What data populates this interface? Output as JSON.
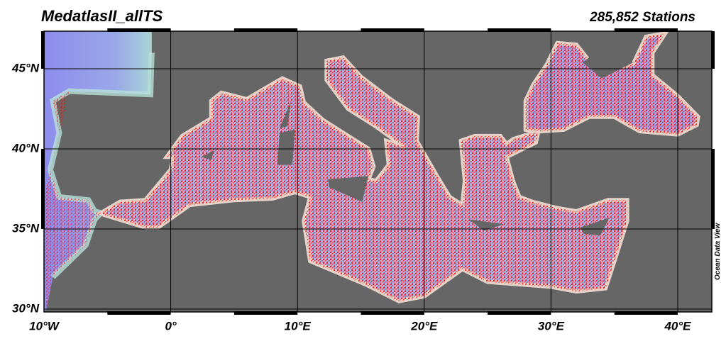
{
  "title": "MedatlasII_allTS",
  "station_count": "285,852 Stations",
  "lat_labels": [
    "45°N",
    "40°N",
    "35°N",
    "30°N"
  ],
  "lon_labels": [
    "10°W",
    "0°",
    "10°E",
    "20°E",
    "30°E",
    "40°E"
  ],
  "watermark": "Ocean Data View"
}
